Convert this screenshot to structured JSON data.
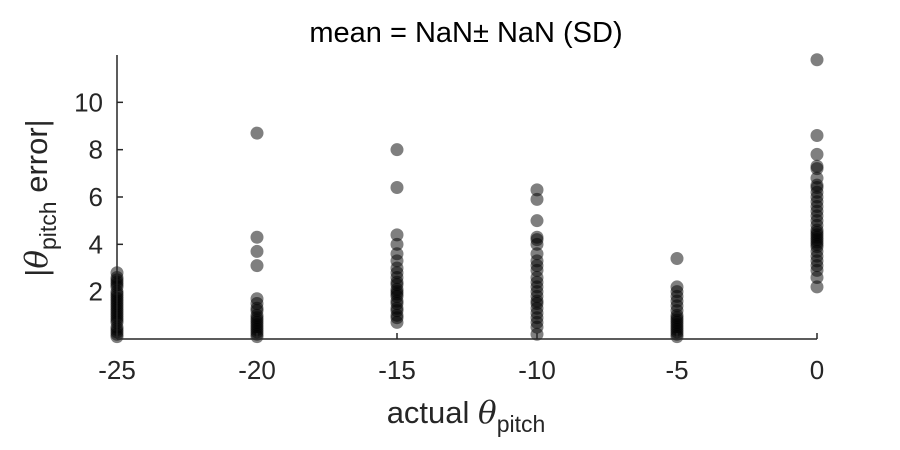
{
  "chart_data": {
    "type": "scatter",
    "title": "mean = NaN± NaN (SD)",
    "xlabel": {
      "prefix": "actual ",
      "symbol": "θ",
      "subscript": "pitch"
    },
    "ylabel": {
      "prefix": "|",
      "symbol": "θ",
      "subscript": "pitch",
      "suffix": " error|"
    },
    "xlim": [
      -25,
      0
    ],
    "ylim": [
      0,
      12
    ],
    "xticks": [
      -25,
      -20,
      -15,
      -10,
      -5,
      0
    ],
    "xtick_labels": [
      "-25",
      "-20",
      "-15",
      "-10",
      "-5",
      "0"
    ],
    "yticks": [
      2,
      4,
      6,
      8,
      10
    ],
    "ytick_labels": [
      "2",
      "4",
      "6",
      "8",
      "10"
    ],
    "grid": false,
    "marker_color": "#000000",
    "marker_opacity": 0.5,
    "series": [
      {
        "x": -25,
        "y": [
          2.8,
          2.6,
          2.5,
          2.4,
          2.3,
          2.2,
          2.0,
          1.9,
          1.8,
          1.7,
          1.6,
          1.5,
          1.4,
          1.3,
          1.2,
          1.1,
          1.0,
          0.9,
          0.8,
          0.7,
          0.5,
          0.4,
          0.3,
          0.2,
          0.1
        ]
      },
      {
        "x": -20,
        "y": [
          8.7,
          4.3,
          3.7,
          3.1,
          1.7,
          1.5,
          1.3,
          1.2,
          1.0,
          0.9,
          0.8,
          0.7,
          0.6,
          0.5,
          0.4,
          0.3,
          0.2,
          0.1
        ]
      },
      {
        "x": -15,
        "y": [
          8.0,
          6.4,
          4.4,
          4.0,
          3.6,
          3.3,
          3.0,
          2.8,
          2.6,
          2.4,
          2.3,
          2.1,
          2.0,
          1.9,
          1.8,
          1.6,
          1.5,
          1.3,
          1.2,
          1.0,
          0.9,
          0.7
        ]
      },
      {
        "x": -10,
        "y": [
          6.3,
          5.9,
          5.0,
          4.3,
          4.2,
          4.0,
          3.6,
          3.3,
          3.1,
          2.9,
          2.6,
          2.4,
          2.2,
          2.0,
          1.8,
          1.6,
          1.5,
          1.3,
          1.1,
          0.9,
          0.7,
          0.5,
          0.2
        ]
      },
      {
        "x": -5,
        "y": [
          3.4,
          2.2,
          2.0,
          1.8,
          1.6,
          1.4,
          1.2,
          1.0,
          0.9,
          0.8,
          0.7,
          0.6,
          0.5,
          0.4,
          0.3,
          0.2,
          0.1
        ]
      },
      {
        "x": 0,
        "y": [
          11.8,
          8.6,
          7.8,
          7.3,
          7.2,
          6.8,
          6.5,
          6.4,
          6.2,
          6.0,
          5.8,
          5.6,
          5.4,
          5.2,
          5.0,
          4.8,
          4.6,
          4.5,
          4.4,
          4.3,
          4.2,
          4.1,
          4.0,
          3.9,
          3.7,
          3.5,
          3.3,
          3.1,
          2.9,
          2.6,
          2.2
        ]
      }
    ]
  }
}
